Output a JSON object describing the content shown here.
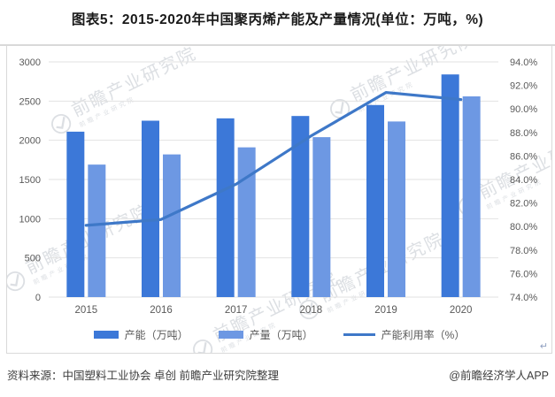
{
  "page": {
    "title": "图表5：2015-2020年中国聚丙烯产能及产量情况(单位：万吨，%)",
    "source_label": "资料来源：中国塑料工业协会 卓创 前瞻产业研究院整理",
    "credit": "@前瞻经济学人APP",
    "watermark_text": "前瞻产业研究院"
  },
  "colors": {
    "capacity_bar": "#3c78d8",
    "output_bar": "#6d98e3",
    "rate_line": "#3e78c8",
    "gridline": "#e2e2e2",
    "axis_text": "#595959",
    "box_border": "#d9d9d9",
    "title_text": "#1a1a1a",
    "source_text": "#3d3d3d"
  },
  "chart_data": {
    "type": "bar",
    "subtype": "grouped-bars-with-secondary-axis-line",
    "title": "图表5：2015-2020年中国聚丙烯产能及产量情况(单位：万吨，%)",
    "categories": [
      "2015",
      "2016",
      "2017",
      "2018",
      "2019",
      "2020"
    ],
    "series": [
      {
        "name": "产能（万吨）",
        "type": "bar",
        "axis": "left",
        "values": [
          2110,
          2250,
          2280,
          2310,
          2450,
          2840
        ]
      },
      {
        "name": "产量（万吨）",
        "type": "bar",
        "axis": "left",
        "values": [
          1690,
          1820,
          1910,
          2040,
          2240,
          2560
        ]
      },
      {
        "name": "产能利用率（%）",
        "type": "line",
        "axis": "right",
        "values": [
          80.1,
          80.6,
          83.6,
          87.7,
          91.4,
          90.8
        ]
      }
    ],
    "left_axis": {
      "min": 0,
      "max": 3000,
      "step": 500,
      "ticks": [
        "0",
        "500",
        "1000",
        "1500",
        "2000",
        "2500",
        "3000"
      ]
    },
    "right_axis": {
      "min": 74,
      "max": 94,
      "step": 2,
      "ticks": [
        "74.0%",
        "76.0%",
        "78.0%",
        "80.0%",
        "82.0%",
        "84.0%",
        "86.0%",
        "88.0%",
        "90.0%",
        "92.0%",
        "94.0%"
      ]
    },
    "grid": true,
    "legend_position": "bottom"
  }
}
